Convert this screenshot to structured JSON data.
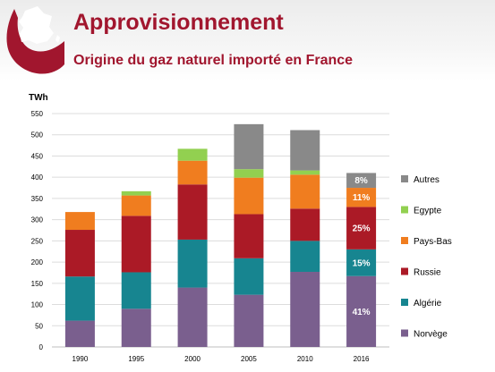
{
  "header": {
    "title": "Approvisionnement",
    "subtitle": "Origine du gaz naturel importé en France",
    "accent_color": "#a1162e"
  },
  "chart_data": {
    "type": "bar",
    "stacked": true,
    "title": "Origine du gaz naturel importé en France",
    "ylabel": "TWh",
    "xlabel": "",
    "ylim": [
      0,
      550
    ],
    "yticks": [
      0,
      50,
      100,
      150,
      200,
      250,
      300,
      350,
      400,
      450,
      500,
      550
    ],
    "grid": true,
    "legend_position": "right",
    "categories": [
      "1990",
      "1995",
      "2000",
      "2005",
      "2010",
      "2016"
    ],
    "series": [
      {
        "name": "Norvège",
        "color": "#7a5f8e",
        "values": [
          62,
          90,
          140,
          123,
          177,
          167
        ],
        "labels": [
          "",
          "",
          "",
          "",
          "",
          "41%"
        ]
      },
      {
        "name": "Algérie",
        "color": "#178590",
        "values": [
          104,
          86,
          113,
          86,
          73,
          63
        ],
        "labels": [
          "",
          "",
          "",
          "",
          "",
          "15%"
        ]
      },
      {
        "name": "Russie",
        "color": "#ab1a26",
        "values": [
          110,
          133,
          130,
          104,
          76,
          100
        ],
        "labels": [
          "",
          "",
          "",
          "",
          "",
          "25%"
        ]
      },
      {
        "name": "Pays-Bas",
        "color": "#f07d1f",
        "values": [
          42,
          48,
          56,
          86,
          80,
          45
        ],
        "labels": [
          "",
          "",
          "",
          "",
          "",
          "11%"
        ]
      },
      {
        "name": "Egypte",
        "color": "#92d050",
        "values": [
          0,
          10,
          28,
          20,
          10,
          0
        ],
        "labels": [
          "",
          "",
          "",
          "",
          "",
          ""
        ]
      },
      {
        "name": "Autres",
        "color": "#898989",
        "values": [
          0,
          0,
          0,
          106,
          95,
          35
        ],
        "labels": [
          "",
          "",
          "",
          "",
          "",
          "8%"
        ]
      }
    ]
  }
}
